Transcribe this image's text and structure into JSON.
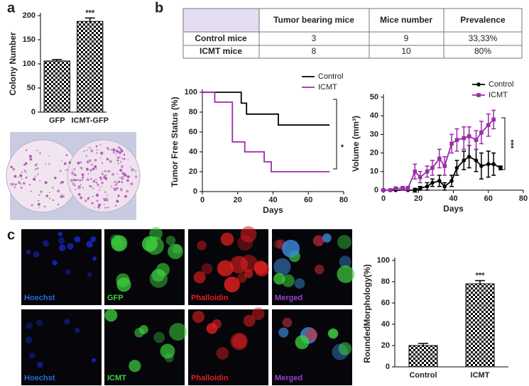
{
  "panels": [
    "a",
    "b",
    "c"
  ],
  "table": {
    "header": [
      "Tumor bearing mice",
      "Mice number",
      "Prevalence"
    ],
    "rows": [
      [
        "Control mice",
        "3",
        "9",
        "33,33%"
      ],
      [
        "ICMT mice",
        "8",
        "10",
        "80%"
      ]
    ]
  },
  "micrographs": {
    "labels": [
      [
        "Hoechst",
        "GFP",
        "Phalloidin",
        "Merged"
      ],
      [
        "Hoechst",
        "ICMT",
        "Phalloidin",
        "Merged"
      ]
    ]
  },
  "chart_data": [
    {
      "type": "bar",
      "y_label": "Colony Number",
      "categories": [
        "GFP",
        "ICMT-GFP"
      ],
      "values": [
        106,
        188
      ],
      "errors": [
        3,
        7
      ],
      "annotation": "***",
      "color": "#000000",
      "ylim": [
        0,
        200
      ],
      "yticks": [
        0,
        50,
        100,
        150,
        200
      ]
    },
    {
      "type": "line",
      "step": true,
      "x_label": "Days",
      "y_label": "Tumor Free Status (%)",
      "annotation": "*",
      "series": [
        {
          "name": "Control",
          "color": "#000000",
          "x": [
            0,
            22,
            25,
            43,
            72
          ],
          "values": [
            100,
            89,
            78,
            67,
            67
          ]
        },
        {
          "name": "ICMT",
          "color": "#9b2ca6",
          "x": [
            0,
            7,
            17,
            24,
            35,
            39,
            72
          ],
          "values": [
            100,
            90,
            50,
            40,
            30,
            20,
            20
          ]
        }
      ],
      "xlim": [
        0,
        80
      ],
      "xticks": [
        0,
        20,
        40,
        60,
        80
      ],
      "ylim": [
        0,
        100
      ],
      "yticks": [
        0,
        20,
        40,
        60,
        80,
        100
      ]
    },
    {
      "type": "line",
      "x_label": "Days",
      "y_label": "Volume (mm³)",
      "annotation": "***",
      "series": [
        {
          "name": "Control",
          "color": "#000000",
          "marker": "circle",
          "x": [
            0,
            7,
            14,
            18,
            21,
            25,
            28,
            32,
            35,
            39,
            42,
            46,
            49,
            53,
            56,
            60,
            63,
            67
          ],
          "values": [
            0,
            0,
            0,
            0,
            1,
            2,
            4,
            5,
            2,
            5,
            12,
            16,
            18,
            16,
            13,
            14,
            14,
            12
          ],
          "errors": [
            0,
            0,
            0,
            1,
            1,
            2,
            2,
            3,
            2,
            3,
            4,
            5,
            6,
            6,
            7,
            7,
            6,
            1
          ]
        },
        {
          "name": "ICMT",
          "color": "#9b2ca6",
          "marker": "square",
          "x": [
            0,
            4,
            7,
            11,
            14,
            18,
            21,
            25,
            28,
            32,
            35,
            39,
            42,
            46,
            49,
            53,
            56,
            60,
            63
          ],
          "values": [
            0,
            0,
            1,
            1,
            1,
            10,
            7,
            10,
            12,
            17,
            13,
            25,
            27,
            28,
            29,
            27,
            31,
            35,
            38
          ],
          "errors": [
            0,
            0,
            0,
            1,
            1,
            4,
            3,
            3,
            4,
            5,
            5,
            5,
            6,
            6,
            5,
            5,
            6,
            6,
            5
          ]
        }
      ],
      "xlim": [
        0,
        80
      ],
      "xticks": [
        0,
        20,
        40,
        60,
        80
      ],
      "ylim": [
        0,
        50
      ],
      "yticks": [
        0,
        10,
        20,
        30,
        40,
        50
      ]
    },
    {
      "type": "bar",
      "y_label": "RoundedMorphology(%)",
      "categories": [
        "Control",
        "ICMT"
      ],
      "values": [
        20,
        78
      ],
      "errors": [
        2,
        3
      ],
      "annotation": "***",
      "color": "#000000",
      "ylim": [
        0,
        100
      ],
      "yticks": [
        0,
        20,
        40,
        60,
        80,
        100
      ]
    }
  ]
}
